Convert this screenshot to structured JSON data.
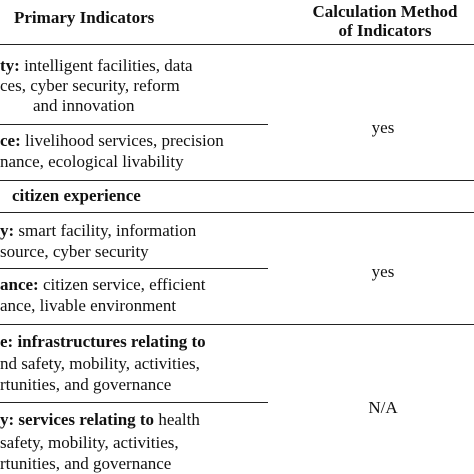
{
  "header": {
    "primary": "Primary Indicators",
    "method": [
      "Calculation Method",
      "of Indicators"
    ]
  },
  "sections": [
    {
      "rows": [
        {
          "lines": [
            {
              "bold": "ty:",
              "text": "intelligent facilities, data"
            },
            {
              "text": "ces, cyber security, reform"
            },
            {
              "text": "and innovation"
            }
          ]
        },
        {
          "lines": [
            {
              "bold": "ce:",
              "text": "livelihood services, precision"
            },
            {
              "text": "nance, ecological livability"
            }
          ]
        }
      ],
      "method": "yes"
    },
    {
      "heading": "citizen experience",
      "rows": [
        {
          "lines": [
            {
              "bold": "y:",
              "text": "smart facility, information"
            },
            {
              "text": "source, cyber security"
            }
          ]
        },
        {
          "lines": [
            {
              "bold": "ance:",
              "text": "citizen service, efficient"
            },
            {
              "text": "ance, livable environment"
            }
          ]
        }
      ],
      "method": "yes"
    },
    {
      "rows": [
        {
          "lines": [
            {
              "bold": "e: infrastructures relating to"
            },
            {
              "text": "nd safety, mobility, activities,"
            },
            {
              "text": "rtunities, and governance"
            }
          ]
        },
        {
          "lines": [
            {
              "bold": "y: services relating to",
              "text": "health"
            },
            {
              "text": "safety, mobility, activities,"
            },
            {
              "text": "rtunities, and governance"
            }
          ]
        }
      ],
      "method": "N/A"
    }
  ]
}
